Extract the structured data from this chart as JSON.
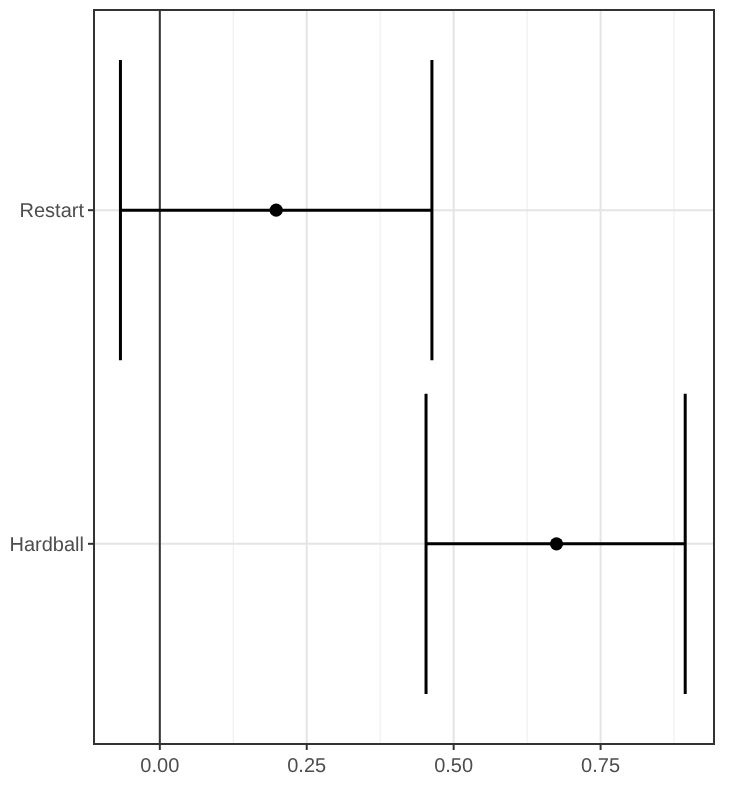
{
  "chart_data": {
    "type": "scatter",
    "orientation": "horizontal",
    "categories": [
      "Restart",
      "Hardball"
    ],
    "values": [
      0.198,
      0.675
    ],
    "errors": [
      [
        -0.067,
        0.463
      ],
      [
        0.453,
        0.894
      ]
    ],
    "color": "#000000",
    "marker": "circle",
    "grid": true,
    "xlim": [
      -0.112,
      0.943
    ],
    "xticks": [
      {
        "value": 0,
        "label": "0.00"
      },
      {
        "value": 0.25,
        "label": "0.25"
      },
      {
        "value": 0.5,
        "label": "0.50"
      },
      {
        "value": 0.75,
        "label": "0.75"
      }
    ],
    "ref_lines": [
      {
        "axis": "x",
        "value": 0,
        "color": "#333333"
      }
    ]
  }
}
